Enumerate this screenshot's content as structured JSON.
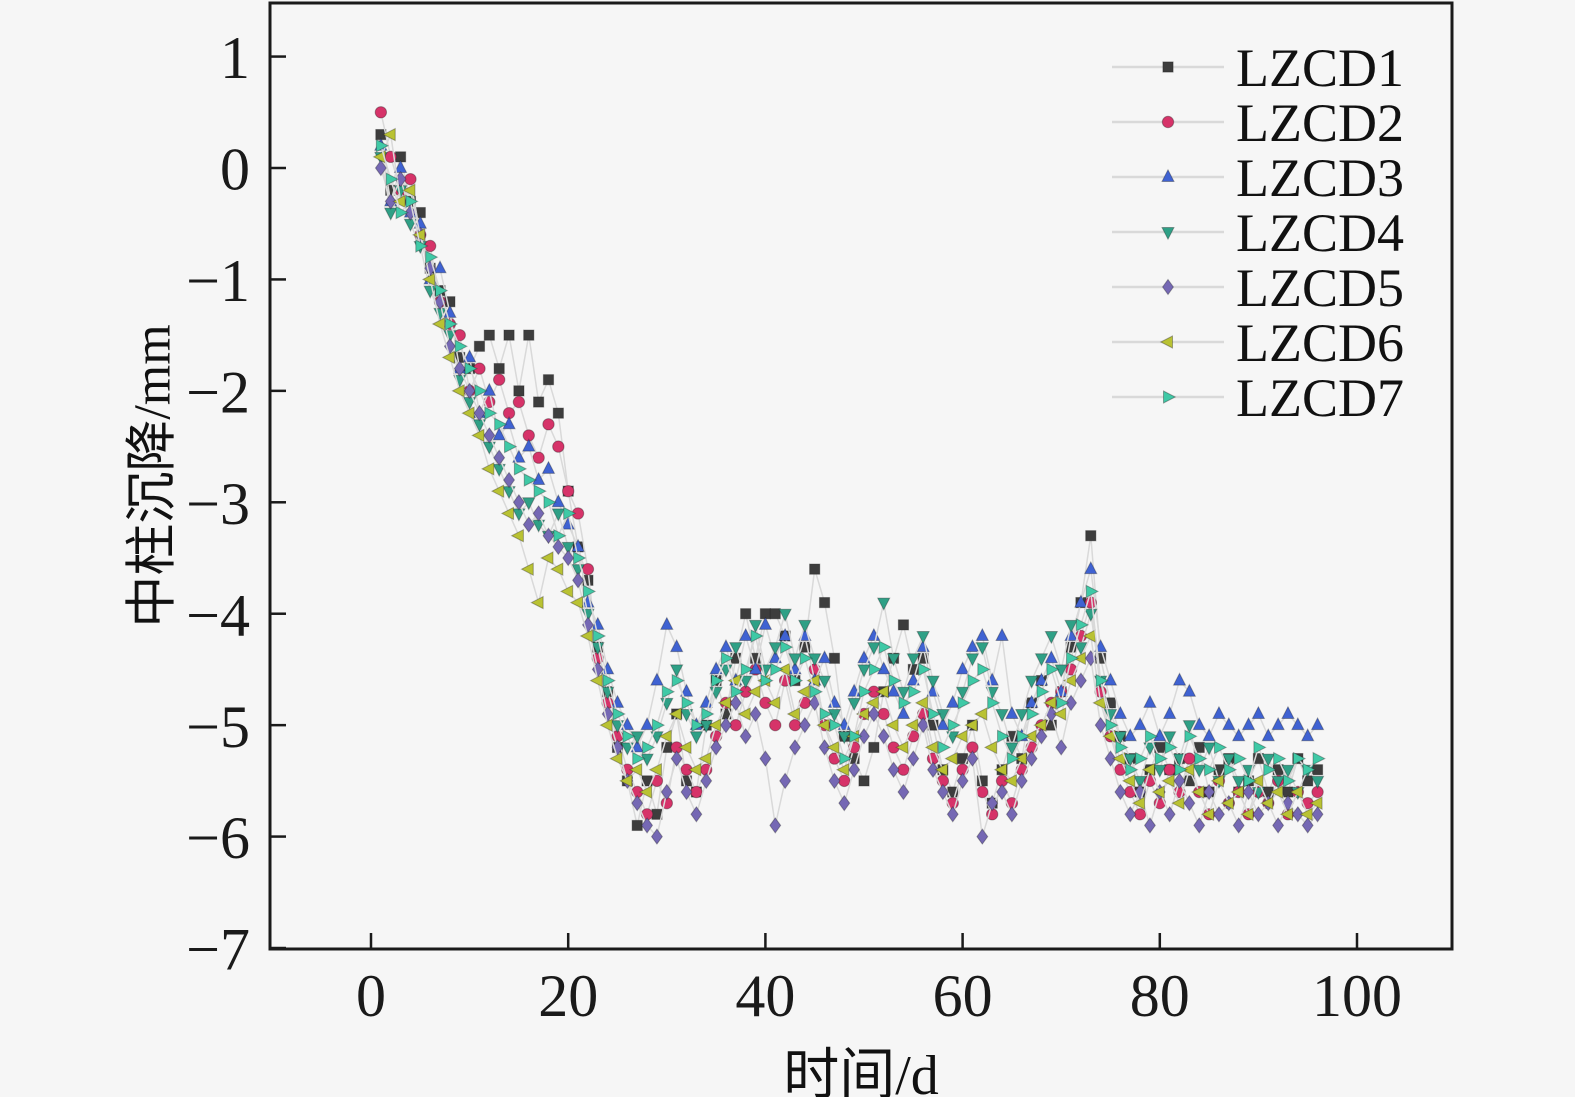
{
  "style": {
    "background": "#f6f6f6",
    "axis_color": "#1a1a1a",
    "connector_line_color": "#d9d9d9",
    "tick_label_color": "#1a1a1a"
  },
  "chart_data": {
    "type": "scatter",
    "title": "",
    "xlabel": "时间/d",
    "ylabel": "中柱沉降/mm",
    "xlim": [
      -10,
      110
    ],
    "ylim": [
      -7,
      1.5
    ],
    "x_ticks": [
      0,
      20,
      40,
      60,
      80,
      100
    ],
    "y_ticks": [
      1,
      0,
      -1,
      -2,
      -3,
      -4,
      -5,
      -6,
      -7
    ],
    "grid": false,
    "legend_position": "top-right",
    "x": [
      1,
      2,
      3,
      4,
      5,
      6,
      7,
      8,
      9,
      10,
      11,
      12,
      13,
      14,
      15,
      16,
      17,
      18,
      19,
      20,
      21,
      22,
      23,
      24,
      25,
      26,
      27,
      28,
      29,
      30,
      31,
      32,
      33,
      34,
      35,
      36,
      37,
      38,
      39,
      40,
      41,
      42,
      43,
      44,
      45,
      46,
      47,
      48,
      49,
      50,
      51,
      52,
      53,
      54,
      55,
      56,
      57,
      58,
      59,
      60,
      61,
      62,
      63,
      64,
      65,
      66,
      67,
      68,
      69,
      70,
      71,
      72,
      73,
      74,
      75,
      76,
      77,
      78,
      79,
      80,
      81,
      82,
      83,
      84,
      85,
      86,
      87,
      88,
      89,
      90,
      91,
      92,
      93,
      94,
      95,
      96
    ],
    "series": [
      {
        "name": "LZCD1",
        "marker": "square",
        "color": "#3d3d3d",
        "values": [
          0.3,
          -0.2,
          0.1,
          -0.3,
          -0.4,
          -0.9,
          -1.1,
          -1.2,
          -1.7,
          -1.8,
          -1.6,
          -1.5,
          -1.8,
          -1.5,
          -2.0,
          -1.5,
          -2.1,
          -1.9,
          -2.2,
          -2.9,
          -3.4,
          -3.7,
          -4.3,
          -4.7,
          -5.2,
          -5.5,
          -5.9,
          -5.5,
          -5.8,
          -5.2,
          -4.9,
          -5.5,
          -5.6,
          -5.0,
          -4.6,
          -4.9,
          -4.4,
          -4.0,
          -4.4,
          -4.0,
          -4.0,
          -4.2,
          -4.6,
          -4.3,
          -3.6,
          -3.9,
          -4.4,
          -5.1,
          -5.3,
          -5.5,
          -5.2,
          -4.7,
          -4.4,
          -4.1,
          -4.5,
          -4.4,
          -5.0,
          -5.4,
          -5.6,
          -5.3,
          -5.0,
          -5.5,
          -5.7,
          -5.4,
          -5.1,
          -5.3,
          -4.8,
          -4.6,
          -5.0,
          -4.7,
          -4.3,
          -3.9,
          -3.3,
          -4.4,
          -4.8,
          -5.1,
          -5.3,
          -5.6,
          -5.4,
          -5.2,
          -5.4,
          -5.3,
          -5.5,
          -5.2,
          -5.6,
          -5.4,
          -5.3,
          -5.6,
          -5.5,
          -5.3,
          -5.6,
          -5.4,
          -5.6,
          -5.3,
          -5.5,
          -5.4
        ]
      },
      {
        "name": "LZCD2",
        "marker": "circle",
        "color": "#d63369",
        "values": [
          0.5,
          0.1,
          -0.2,
          -0.1,
          -0.6,
          -0.7,
          -1.2,
          -1.4,
          -1.5,
          -2.0,
          -1.8,
          -2.1,
          -1.9,
          -2.2,
          -2.1,
          -2.4,
          -2.6,
          -2.3,
          -2.5,
          -2.9,
          -3.1,
          -3.6,
          -4.4,
          -4.8,
          -5.1,
          -5.4,
          -5.6,
          -5.8,
          -5.5,
          -5.7,
          -5.2,
          -5.4,
          -5.6,
          -5.4,
          -5.1,
          -4.8,
          -5.0,
          -4.7,
          -4.5,
          -4.8,
          -5.0,
          -4.6,
          -5.0,
          -4.8,
          -4.5,
          -5.0,
          -5.3,
          -5.5,
          -5.2,
          -4.9,
          -4.7,
          -4.9,
          -5.2,
          -5.4,
          -5.1,
          -4.9,
          -5.3,
          -5.5,
          -5.7,
          -5.4,
          -5.2,
          -5.6,
          -5.8,
          -5.5,
          -5.7,
          -5.4,
          -5.2,
          -5.0,
          -4.8,
          -4.7,
          -4.5,
          -4.2,
          -3.9,
          -4.7,
          -5.1,
          -5.4,
          -5.6,
          -5.8,
          -5.5,
          -5.7,
          -5.4,
          -5.6,
          -5.3,
          -5.6,
          -5.8,
          -5.5,
          -5.7,
          -5.6,
          -5.8,
          -5.6,
          -5.7,
          -5.5,
          -5.8,
          -5.6,
          -5.7,
          -5.6
        ]
      },
      {
        "name": "LZCD3",
        "marker": "triangle-up",
        "color": "#3f62d2",
        "values": [
          0.2,
          -0.3,
          0.0,
          -0.4,
          -0.5,
          -1.0,
          -0.9,
          -1.3,
          -1.8,
          -1.7,
          -2.2,
          -2.0,
          -2.4,
          -2.3,
          -2.6,
          -2.5,
          -2.8,
          -2.7,
          -3.0,
          -3.2,
          -3.4,
          -3.9,
          -4.1,
          -4.5,
          -4.8,
          -5.0,
          -5.2,
          -5.0,
          -4.6,
          -4.1,
          -4.3,
          -4.7,
          -5.0,
          -4.8,
          -4.5,
          -4.3,
          -4.6,
          -4.2,
          -4.5,
          -4.1,
          -4.4,
          -4.2,
          -4.5,
          -4.2,
          -4.6,
          -4.4,
          -4.8,
          -5.0,
          -4.7,
          -4.4,
          -4.2,
          -4.5,
          -4.7,
          -4.9,
          -4.6,
          -4.3,
          -4.7,
          -5.0,
          -4.8,
          -4.5,
          -4.3,
          -4.2,
          -4.6,
          -4.2,
          -4.9,
          -5.1,
          -4.8,
          -4.6,
          -4.4,
          -4.7,
          -4.2,
          -3.9,
          -3.6,
          -4.3,
          -4.6,
          -4.9,
          -5.1,
          -5.0,
          -4.8,
          -5.1,
          -4.9,
          -4.6,
          -4.7,
          -5.0,
          -5.1,
          -4.9,
          -5.0,
          -5.1,
          -5.0,
          -4.9,
          -5.1,
          -5.0,
          -4.9,
          -5.0,
          -5.1,
          -5.0
        ]
      },
      {
        "name": "LZCD4",
        "marker": "triangle-down",
        "color": "#2fa086",
        "values": [
          0.1,
          -0.4,
          -0.2,
          -0.5,
          -0.7,
          -1.1,
          -1.3,
          -1.5,
          -1.9,
          -2.1,
          -2.3,
          -2.5,
          -2.7,
          -2.9,
          -3.1,
          -3.0,
          -3.2,
          -3.3,
          -3.1,
          -3.4,
          -3.6,
          -4.0,
          -4.3,
          -4.7,
          -5.0,
          -5.2,
          -5.1,
          -5.3,
          -5.1,
          -4.8,
          -4.5,
          -4.9,
          -5.1,
          -5.0,
          -4.7,
          -4.5,
          -4.3,
          -4.6,
          -4.1,
          -4.5,
          -4.3,
          -4.0,
          -4.4,
          -4.1,
          -4.4,
          -4.6,
          -4.9,
          -5.1,
          -4.8,
          -4.5,
          -4.3,
          -3.9,
          -4.4,
          -4.7,
          -4.4,
          -4.2,
          -4.6,
          -4.9,
          -5.1,
          -4.7,
          -4.4,
          -4.3,
          -4.7,
          -4.9,
          -5.2,
          -4.9,
          -4.6,
          -4.4,
          -4.2,
          -4.5,
          -4.1,
          -4.3,
          -4.0,
          -4.6,
          -4.9,
          -5.1,
          -5.3,
          -5.5,
          -5.2,
          -5.4,
          -5.1,
          -5.3,
          -5.0,
          -5.4,
          -5.2,
          -5.5,
          -5.3,
          -5.5,
          -5.4,
          -5.6,
          -5.3,
          -5.5,
          -5.4,
          -5.6,
          -5.4,
          -5.5
        ]
      },
      {
        "name": "LZCD5",
        "marker": "diamond",
        "color": "#7568b4",
        "values": [
          0.0,
          -0.3,
          -0.1,
          -0.4,
          -0.6,
          -0.9,
          -1.2,
          -1.6,
          -1.8,
          -2.0,
          -2.2,
          -2.4,
          -2.6,
          -2.8,
          -3.0,
          -3.2,
          -3.1,
          -3.3,
          -3.4,
          -3.5,
          -3.7,
          -4.1,
          -4.5,
          -4.9,
          -5.2,
          -5.5,
          -5.7,
          -5.9,
          -6.0,
          -5.6,
          -5.3,
          -5.6,
          -5.8,
          -5.5,
          -5.2,
          -5.0,
          -4.8,
          -5.1,
          -4.9,
          -5.3,
          -5.9,
          -5.5,
          -5.2,
          -5.0,
          -4.8,
          -5.2,
          -5.5,
          -5.7,
          -5.4,
          -5.1,
          -4.9,
          -5.1,
          -5.4,
          -5.6,
          -5.3,
          -5.0,
          -5.4,
          -5.6,
          -5.8,
          -5.5,
          -5.3,
          -6.0,
          -5.7,
          -5.6,
          -5.8,
          -5.5,
          -5.3,
          -5.1,
          -4.9,
          -5.2,
          -4.8,
          -4.6,
          -4.4,
          -5.0,
          -5.3,
          -5.6,
          -5.8,
          -5.6,
          -5.9,
          -5.6,
          -5.8,
          -5.5,
          -5.7,
          -5.9,
          -5.6,
          -5.8,
          -5.7,
          -5.9,
          -5.6,
          -5.8,
          -5.7,
          -5.9,
          -5.7,
          -5.8,
          -5.9,
          -5.8
        ]
      },
      {
        "name": "LZCD6",
        "marker": "triangle-left",
        "color": "#b9c233",
        "values": [
          0.1,
          0.3,
          -0.3,
          -0.2,
          -0.6,
          -1.0,
          -1.4,
          -1.7,
          -2.0,
          -2.2,
          -2.4,
          -2.7,
          -2.9,
          -3.1,
          -3.3,
          -3.6,
          -3.9,
          -3.5,
          -3.6,
          -3.8,
          -3.9,
          -4.2,
          -4.6,
          -5.0,
          -5.3,
          -5.5,
          -5.4,
          -5.6,
          -5.4,
          -5.1,
          -4.9,
          -5.2,
          -5.4,
          -5.3,
          -5.0,
          -4.8,
          -4.6,
          -4.9,
          -4.7,
          -4.6,
          -4.8,
          -4.5,
          -4.9,
          -4.7,
          -4.6,
          -5.0,
          -5.2,
          -5.4,
          -5.1,
          -4.9,
          -4.8,
          -4.7,
          -5.0,
          -5.2,
          -5.0,
          -4.8,
          -5.2,
          -5.4,
          -5.3,
          -5.1,
          -5.0,
          -4.9,
          -5.2,
          -5.4,
          -5.5,
          -5.3,
          -5.1,
          -5.0,
          -4.8,
          -4.9,
          -4.6,
          -4.4,
          -4.2,
          -4.8,
          -5.1,
          -5.3,
          -5.5,
          -5.7,
          -5.4,
          -5.6,
          -5.5,
          -5.7,
          -5.4,
          -5.6,
          -5.8,
          -5.5,
          -5.7,
          -5.6,
          -5.8,
          -5.5,
          -5.7,
          -5.6,
          -5.8,
          -5.6,
          -5.8,
          -5.7
        ]
      },
      {
        "name": "LZCD7",
        "marker": "triangle-right",
        "color": "#3fc9a6",
        "values": [
          0.2,
          -0.1,
          -0.4,
          -0.3,
          -0.7,
          -0.8,
          -1.1,
          -1.4,
          -1.6,
          -1.8,
          -2.0,
          -2.2,
          -2.3,
          -2.5,
          -2.7,
          -2.8,
          -2.9,
          -3.0,
          -3.3,
          -3.1,
          -3.5,
          -3.8,
          -4.2,
          -4.6,
          -4.9,
          -5.1,
          -5.3,
          -5.2,
          -5.0,
          -4.7,
          -4.6,
          -4.8,
          -5.0,
          -4.9,
          -4.6,
          -4.4,
          -4.7,
          -4.5,
          -4.2,
          -4.6,
          -4.5,
          -4.3,
          -4.6,
          -4.4,
          -4.7,
          -4.9,
          -5.0,
          -5.3,
          -5.1,
          -4.7,
          -4.5,
          -4.3,
          -4.6,
          -4.8,
          -4.7,
          -4.5,
          -4.9,
          -5.2,
          -5.0,
          -4.8,
          -4.6,
          -4.5,
          -4.8,
          -5.1,
          -5.3,
          -5.1,
          -4.9,
          -4.7,
          -4.5,
          -4.8,
          -4.4,
          -4.1,
          -3.8,
          -4.6,
          -5.0,
          -5.2,
          -5.4,
          -5.3,
          -5.1,
          -5.3,
          -5.2,
          -5.4,
          -5.1,
          -5.3,
          -5.4,
          -5.2,
          -5.4,
          -5.3,
          -5.5,
          -5.2,
          -5.4,
          -5.3,
          -5.5,
          -5.3,
          -5.4,
          -5.3
        ]
      }
    ]
  }
}
